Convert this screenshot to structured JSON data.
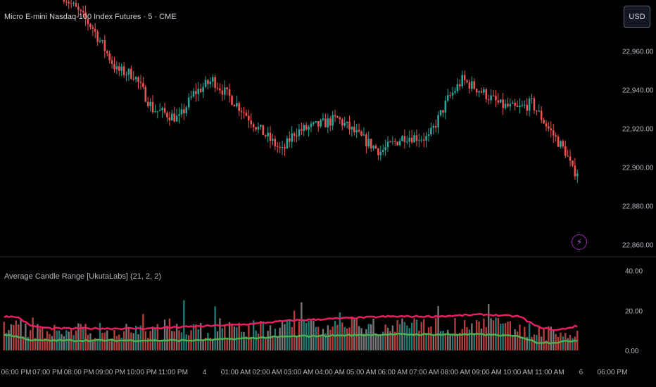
{
  "header": {
    "symbol_title": "Micro E-mini Nasdaq-100 Index Futures · 5 · CME",
    "currency_button": "USD"
  },
  "indicator": {
    "title": "Average Candle Range [UkutaLabs] (21, 2, 2)"
  },
  "colors": {
    "up": "#26a69a",
    "down": "#ef5350",
    "upper_band": "#e91e63",
    "lower_band": "#4caf50",
    "volume_bar": "#9e9e9e",
    "alert_icon": "#9c27b0"
  },
  "icons": {
    "alert": "lightning-bolt-icon"
  },
  "price_axis": {
    "labels": [
      "22,960.00",
      "22,940.00",
      "22,920.00",
      "22,900.00",
      "22,880.00",
      "22,860.00"
    ],
    "values": [
      22960,
      22940,
      22920,
      22900,
      22880,
      22860
    ]
  },
  "indicator_axis": {
    "labels": [
      "40.00",
      "20.00",
      "0.00"
    ],
    "values": [
      40,
      20,
      0
    ]
  },
  "time_axis": {
    "labels": [
      "06:00 PM",
      "07:00 PM",
      "08:00 PM",
      "09:00 PM",
      "10:00 PM",
      "11:00 PM",
      "4",
      "01:00 AM",
      "02:00 AM",
      "03:00 AM",
      "04:00 AM",
      "05:00 AM",
      "06:00 AM",
      "07:00 AM",
      "08:00 AM",
      "09:00 AM",
      "10:00 AM",
      "11:00 AM",
      "6",
      "06:00 PM"
    ]
  },
  "chart_data": {
    "type": "candlestick",
    "price_range": [
      22855,
      22985
    ],
    "indicator_range": [
      0,
      43
    ],
    "price_path": [
      {
        "t": 25,
        "p": 22990
      },
      {
        "t": 38,
        "p": 22972
      },
      {
        "t": 48,
        "p": 22950
      },
      {
        "t": 55,
        "p": 22948
      },
      {
        "t": 63,
        "p": 22930
      },
      {
        "t": 74,
        "p": 22925
      },
      {
        "t": 80,
        "p": 22938
      },
      {
        "t": 88,
        "p": 22945
      },
      {
        "t": 100,
        "p": 22930
      },
      {
        "t": 107,
        "p": 22920
      },
      {
        "t": 117,
        "p": 22908
      },
      {
        "t": 122,
        "p": 22918
      },
      {
        "t": 133,
        "p": 22922
      },
      {
        "t": 140,
        "p": 22925
      },
      {
        "t": 150,
        "p": 22915
      },
      {
        "t": 158,
        "p": 22908
      },
      {
        "t": 168,
        "p": 22916
      },
      {
        "t": 178,
        "p": 22915
      },
      {
        "t": 186,
        "p": 22935
      },
      {
        "t": 192,
        "p": 22945
      },
      {
        "t": 199,
        "p": 22940
      },
      {
        "t": 208,
        "p": 22932
      },
      {
        "t": 215,
        "p": 22930
      },
      {
        "t": 221,
        "p": 22933
      },
      {
        "t": 228,
        "p": 22920
      },
      {
        "t": 235,
        "p": 22908
      },
      {
        "t": 238,
        "p": 22898
      }
    ],
    "upper_band_path": [
      {
        "t": 0,
        "v": 17
      },
      {
        "t": 5,
        "v": 17
      },
      {
        "t": 12,
        "v": 12
      },
      {
        "t": 20,
        "v": 11
      },
      {
        "t": 40,
        "v": 11
      },
      {
        "t": 60,
        "v": 11
      },
      {
        "t": 80,
        "v": 12
      },
      {
        "t": 100,
        "v": 13
      },
      {
        "t": 120,
        "v": 15
      },
      {
        "t": 140,
        "v": 16
      },
      {
        "t": 160,
        "v": 17
      },
      {
        "t": 180,
        "v": 17
      },
      {
        "t": 200,
        "v": 18
      },
      {
        "t": 215,
        "v": 17
      },
      {
        "t": 222,
        "v": 12
      },
      {
        "t": 230,
        "v": 10
      },
      {
        "t": 238,
        "v": 12
      }
    ],
    "lower_band_path": [
      {
        "t": 0,
        "v": 8
      },
      {
        "t": 5,
        "v": 7
      },
      {
        "t": 12,
        "v": 5
      },
      {
        "t": 40,
        "v": 5
      },
      {
        "t": 80,
        "v": 5
      },
      {
        "t": 120,
        "v": 7
      },
      {
        "t": 160,
        "v": 8
      },
      {
        "t": 200,
        "v": 8
      },
      {
        "t": 215,
        "v": 7
      },
      {
        "t": 222,
        "v": 4
      },
      {
        "t": 230,
        "v": 4
      },
      {
        "t": 238,
        "v": 5
      }
    ]
  }
}
